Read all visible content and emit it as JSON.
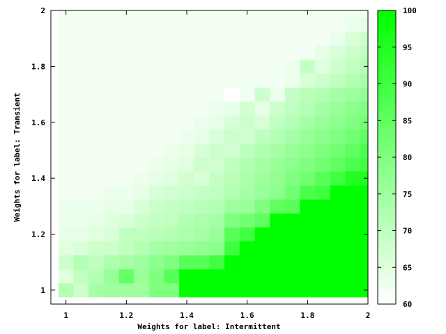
{
  "chart_data": {
    "type": "heatmap",
    "xlabel": "Weights for label: Intermittent",
    "ylabel": "Weights for label: Transient",
    "xlim": [
      0.95,
      2.0
    ],
    "ylim": [
      0.95,
      2.0
    ],
    "x_ticks": [
      "1",
      "1.2",
      "1.4",
      "1.6",
      "1.8",
      "2"
    ],
    "y_ticks": [
      "1",
      "1.2",
      "1.4",
      "1.6",
      "1.8",
      "2"
    ],
    "colorbar": {
      "min": 60,
      "max": 100,
      "ticks": [
        "60",
        "65",
        "70",
        "75",
        "80",
        "85",
        "90",
        "95",
        "100"
      ],
      "low_color": "#ffffff",
      "high_color": "#00ff00"
    },
    "grid": false,
    "x_values": [
      1.0,
      1.05,
      1.1,
      1.15,
      1.2,
      1.25,
      1.3,
      1.35,
      1.4,
      1.45,
      1.5,
      1.55,
      1.6,
      1.65,
      1.7,
      1.75,
      1.8,
      1.85,
      1.9,
      1.95,
      2.0
    ],
    "y_values": [
      1.0,
      1.05,
      1.1,
      1.15,
      1.2,
      1.25,
      1.3,
      1.35,
      1.4,
      1.45,
      1.5,
      1.55,
      1.6,
      1.65,
      1.7,
      1.75,
      1.8,
      1.85,
      1.9,
      1.95,
      2.0
    ],
    "z_values": [
      [
        72,
        68,
        74,
        75,
        75,
        75,
        80,
        80,
        100,
        100,
        100,
        100,
        100,
        100,
        100,
        100,
        100,
        100,
        100,
        100,
        100
      ],
      [
        65,
        70,
        72,
        76,
        84,
        76,
        80,
        86,
        100,
        100,
        100,
        100,
        100,
        100,
        100,
        100,
        100,
        100,
        100,
        100,
        100
      ],
      [
        68,
        72,
        70,
        73,
        74,
        75,
        78,
        80,
        86,
        86,
        90,
        100,
        100,
        100,
        100,
        100,
        100,
        100,
        100,
        100,
        100
      ],
      [
        65,
        66,
        68,
        68,
        70,
        72,
        74,
        75,
        76,
        77,
        78,
        90,
        100,
        100,
        100,
        100,
        100,
        100,
        100,
        100,
        100
      ],
      [
        64,
        64,
        65,
        66,
        70,
        70,
        71,
        72,
        73,
        74,
        76,
        86,
        90,
        100,
        100,
        100,
        100,
        100,
        100,
        100,
        100
      ],
      [
        63,
        63,
        64,
        65,
        66,
        68,
        69,
        70,
        72,
        73,
        74,
        80,
        82,
        85,
        100,
        100,
        100,
        100,
        100,
        100,
        100
      ],
      [
        63,
        63,
        63,
        64,
        64,
        66,
        68,
        69,
        70,
        71,
        72,
        75,
        76,
        80,
        85,
        86,
        100,
        100,
        100,
        100,
        100
      ],
      [
        62,
        62,
        62,
        63,
        63,
        64,
        66,
        67,
        68,
        69,
        70,
        72,
        74,
        76,
        78,
        82,
        88,
        90,
        100,
        100,
        100
      ],
      [
        62,
        62,
        62,
        62,
        62,
        63,
        64,
        65,
        67,
        66,
        69,
        71,
        73,
        75,
        77,
        80,
        82,
        86,
        90,
        95,
        95
      ],
      [
        62,
        62,
        62,
        62,
        62,
        62,
        63,
        64,
        65,
        68,
        67,
        70,
        72,
        74,
        76,
        78,
        80,
        82,
        85,
        88,
        90
      ],
      [
        62,
        62,
        62,
        62,
        62,
        62,
        62,
        63,
        64,
        66,
        68,
        67,
        70,
        72,
        74,
        76,
        78,
        80,
        82,
        85,
        88
      ],
      [
        62,
        62,
        62,
        62,
        62,
        62,
        62,
        62,
        63,
        64,
        66,
        68,
        67,
        70,
        72,
        74,
        76,
        78,
        80,
        82,
        85
      ],
      [
        62,
        62,
        62,
        62,
        62,
        62,
        62,
        62,
        62,
        63,
        64,
        66,
        68,
        66,
        70,
        72,
        74,
        76,
        78,
        80,
        82
      ],
      [
        62,
        62,
        62,
        62,
        62,
        62,
        62,
        62,
        62,
        62,
        63,
        64,
        67,
        64,
        68,
        70,
        72,
        74,
        76,
        78,
        80
      ],
      [
        62,
        62,
        62,
        62,
        62,
        62,
        62,
        62,
        62,
        62,
        62,
        60,
        62,
        68,
        63,
        69,
        71,
        72,
        74,
        75,
        77
      ],
      [
        62,
        62,
        62,
        62,
        62,
        62,
        62,
        62,
        62,
        62,
        62,
        62,
        62,
        62,
        62,
        63,
        66,
        68,
        70,
        72,
        74
      ],
      [
        62,
        62,
        62,
        62,
        62,
        62,
        62,
        62,
        62,
        62,
        62,
        62,
        62,
        62,
        62,
        63,
        69,
        65,
        68,
        70,
        72
      ],
      [
        62,
        62,
        62,
        62,
        62,
        62,
        62,
        62,
        62,
        62,
        62,
        62,
        62,
        62,
        62,
        62,
        62,
        64,
        66,
        68,
        70
      ],
      [
        62,
        62,
        62,
        62,
        62,
        62,
        62,
        62,
        62,
        62,
        62,
        62,
        62,
        62,
        62,
        62,
        62,
        62,
        63,
        66,
        68
      ],
      [
        62,
        62,
        62,
        62,
        62,
        62,
        62,
        62,
        62,
        62,
        62,
        62,
        62,
        62,
        62,
        62,
        62,
        62,
        62,
        63,
        64
      ],
      [
        62,
        62,
        62,
        62,
        62,
        62,
        62,
        62,
        62,
        62,
        62,
        62,
        62,
        62,
        62,
        62,
        62,
        62,
        62,
        62,
        62
      ]
    ]
  }
}
